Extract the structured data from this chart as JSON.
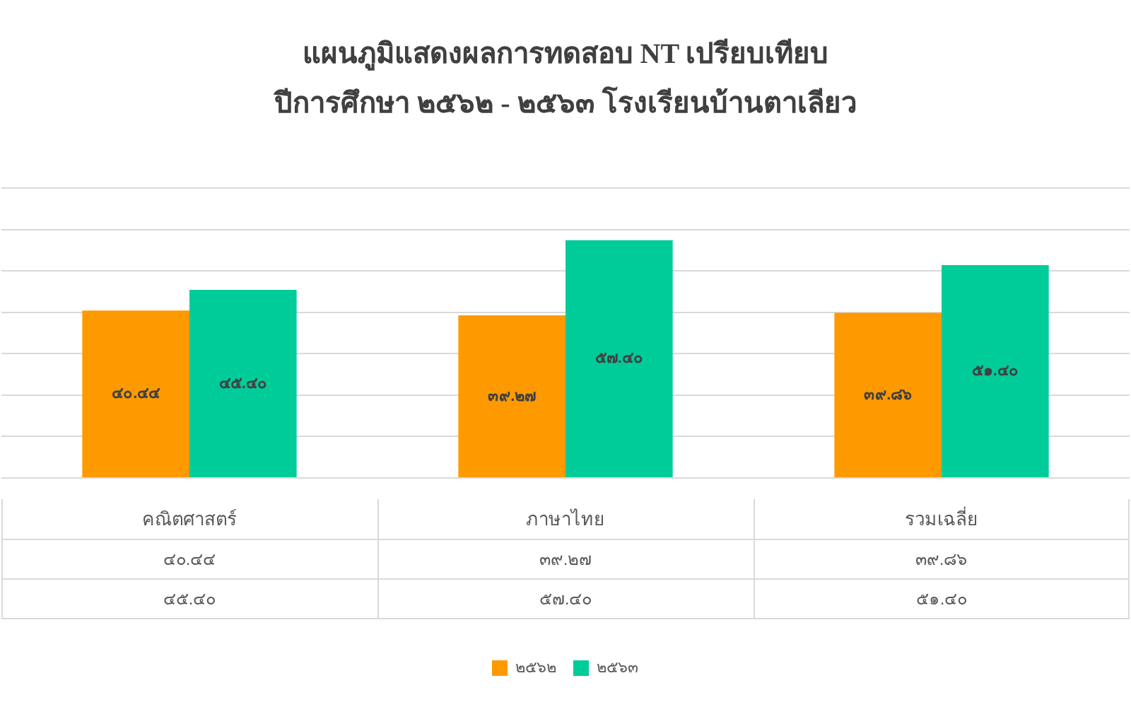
{
  "chart_data": {
    "type": "bar",
    "title": "แผนภูมิแสดงผลการทดสอบ NT เปรียบเทียบ\nปีการศึกษา ๒๕๖๒ - ๒๕๖๓ โรงเรียนบ้านตาเลียว",
    "categories": [
      "คณิตศาสตร์",
      "ภาษาไทย",
      "รวมเฉลี่ย"
    ],
    "series": [
      {
        "name": "๒๕๖๒",
        "color": "#ff9900",
        "values": [
          40.44,
          39.27,
          39.86
        ],
        "value_labels": [
          "๔๐.๔๔",
          "๓๙.๒๗",
          "๓๙.๘๖"
        ]
      },
      {
        "name": "๒๕๖๓",
        "color": "#00cc99",
        "values": [
          45.4,
          57.4,
          51.4
        ],
        "value_labels": [
          "๔๕.๔๐",
          "๕๗.๔๐",
          "๕๑.๔๐"
        ]
      }
    ],
    "ylim": [
      0,
      70
    ],
    "yticks": [
      {
        "value": 0,
        "label": null
      },
      {
        "value": 10,
        "label": null
      },
      {
        "value": 20,
        "label": null
      },
      {
        "value": 30,
        "label": null
      },
      {
        "value": 40,
        "label": null
      },
      {
        "value": 50,
        "label": null
      },
      {
        "value": 60,
        "label": null
      },
      {
        "value": 70,
        "label": null
      }
    ],
    "grid": "y",
    "legend": "bottom",
    "tick_labels": "x"
  }
}
